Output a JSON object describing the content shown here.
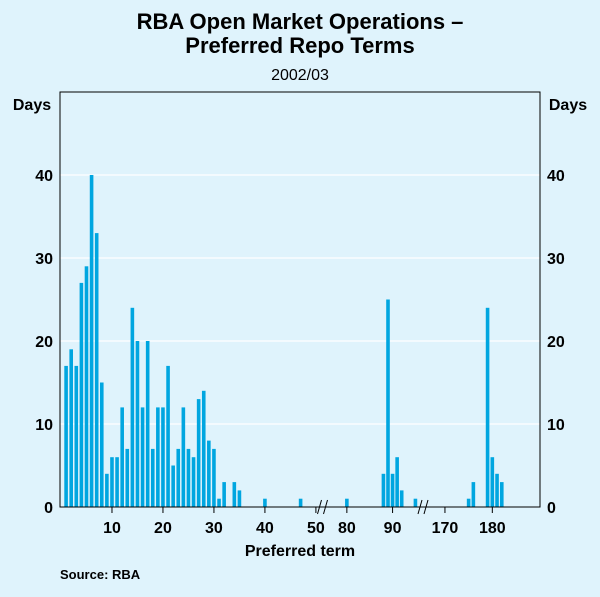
{
  "chart_data": {
    "type": "bar",
    "title": "RBA Open Market Operations – Preferred Repo Terms",
    "title_lines": [
      "RBA Open Market Operations –",
      "Preferred Repo Terms"
    ],
    "subtitle": "2002/03",
    "ylabel_left": "Days",
    "ylabel_right": "Days",
    "xlabel": "Preferred term",
    "source": "Source: RBA",
    "ylim": [
      0,
      50
    ],
    "yticks": [
      0,
      10,
      20,
      30,
      40
    ],
    "bar_color": "#00a6e0",
    "grid_color": "#ffffff",
    "xtick_labels": [
      "10",
      "20",
      "30",
      "40",
      "50",
      "80",
      "90",
      "170",
      "180"
    ],
    "segments": [
      {
        "name": "1-50",
        "xrange": [
          0,
          51
        ],
        "ticks": [
          10,
          20,
          30,
          40,
          50
        ],
        "x": [
          1,
          2,
          3,
          4,
          5,
          6,
          7,
          8,
          9,
          10,
          11,
          12,
          13,
          14,
          15,
          16,
          17,
          18,
          19,
          20,
          21,
          22,
          23,
          24,
          25,
          26,
          27,
          28,
          29,
          30,
          31,
          32,
          33,
          34,
          35,
          40,
          47
        ],
        "values": [
          17,
          19,
          17,
          27,
          29,
          40,
          33,
          15,
          4,
          6,
          6,
          12,
          7,
          24,
          20,
          12,
          20,
          7,
          12,
          12,
          17,
          5,
          7,
          12,
          7,
          6,
          13,
          14,
          8,
          7,
          1,
          3,
          0,
          3,
          2,
          1,
          1
        ]
      },
      {
        "name": "76-95",
        "xrange": [
          75,
          96
        ],
        "ticks": [
          80,
          90
        ],
        "x": [
          80,
          88,
          89,
          90,
          91,
          92,
          95
        ],
        "values": [
          1,
          4,
          25,
          4,
          6,
          2,
          1
        ]
      },
      {
        "name": "165-185",
        "xrange": [
          166,
          185
        ],
        "ticks": [
          170,
          180
        ],
        "x": [
          175,
          176,
          179,
          180,
          181,
          182
        ],
        "values": [
          1,
          3,
          24,
          6,
          4,
          3
        ]
      }
    ]
  }
}
